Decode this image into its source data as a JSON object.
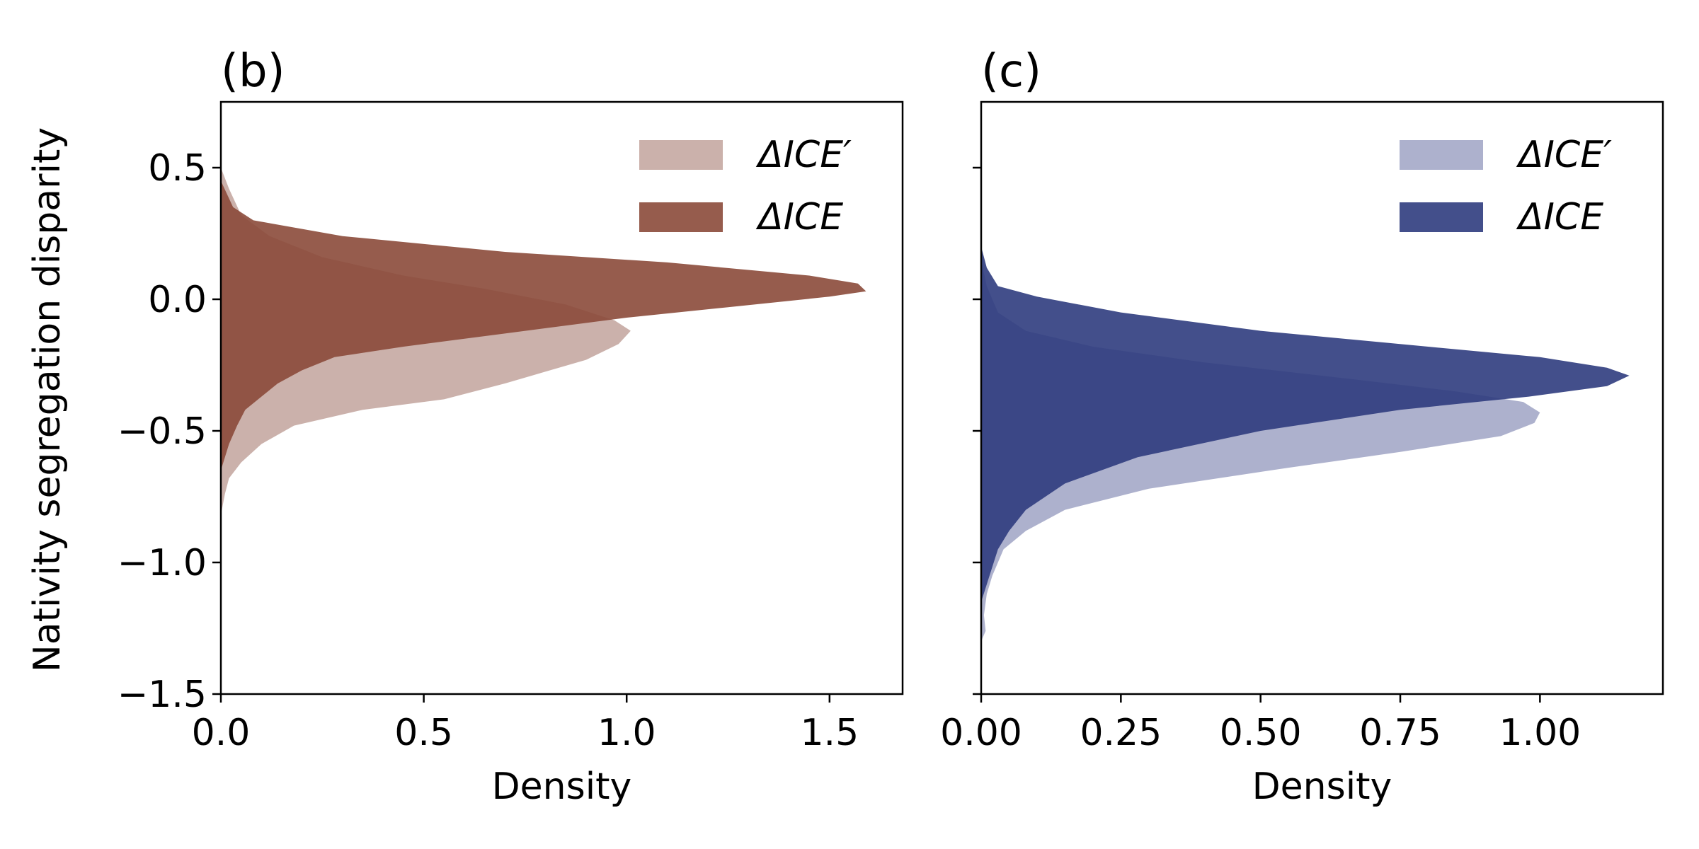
{
  "figure": {
    "ylabel": "Nativity segregation disparity"
  },
  "chart_data": [
    {
      "type": "area",
      "orientation": "horizontal-density",
      "title": "(b)",
      "xlabel": "Density",
      "ylabel": "Nativity segregation disparity",
      "xlim": [
        0,
        1.68
      ],
      "ylim": [
        -1.5,
        0.75
      ],
      "xticks": [
        0.0,
        0.5,
        1.0,
        1.5
      ],
      "xtick_labels": [
        "0.0",
        "0.5",
        "1.0",
        "1.5"
      ],
      "yticks": [
        0.5,
        0.0,
        -0.5,
        -1.0,
        -1.5
      ],
      "ytick_labels": [
        "0.5",
        "0.0",
        "−0.5",
        "−1.0",
        "−1.5"
      ],
      "show_yticklabels": true,
      "legend_position": "top-right",
      "series": [
        {
          "name": "ΔICE′",
          "color": "#c5a8a2",
          "points": [
            [
              0.0,
              0.5
            ],
            [
              0.02,
              0.42
            ],
            [
              0.05,
              0.32
            ],
            [
              0.12,
              0.24
            ],
            [
              0.25,
              0.16
            ],
            [
              0.45,
              0.09
            ],
            [
              0.65,
              0.04
            ],
            [
              0.85,
              -0.02
            ],
            [
              0.97,
              -0.08
            ],
            [
              1.01,
              -0.12
            ],
            [
              0.98,
              -0.17
            ],
            [
              0.9,
              -0.23
            ],
            [
              0.7,
              -0.32
            ],
            [
              0.55,
              -0.38
            ],
            [
              0.35,
              -0.42
            ],
            [
              0.18,
              -0.48
            ],
            [
              0.1,
              -0.55
            ],
            [
              0.05,
              -0.62
            ],
            [
              0.02,
              -0.68
            ],
            [
              0.01,
              -0.74
            ],
            [
              0.0,
              -0.82
            ]
          ]
        },
        {
          "name": "ΔICE",
          "color": "#8b4a3a",
          "points": [
            [
              0.0,
              0.45
            ],
            [
              0.03,
              0.35
            ],
            [
              0.08,
              0.3
            ],
            [
              0.3,
              0.24
            ],
            [
              0.7,
              0.18
            ],
            [
              1.1,
              0.14
            ],
            [
              1.45,
              0.09
            ],
            [
              1.57,
              0.06
            ],
            [
              1.59,
              0.03
            ],
            [
              1.5,
              0.01
            ],
            [
              1.25,
              -0.03
            ],
            [
              1.0,
              -0.07
            ],
            [
              0.7,
              -0.13
            ],
            [
              0.45,
              -0.18
            ],
            [
              0.28,
              -0.22
            ],
            [
              0.2,
              -0.27
            ],
            [
              0.14,
              -0.32
            ],
            [
              0.1,
              -0.37
            ],
            [
              0.06,
              -0.42
            ],
            [
              0.04,
              -0.48
            ],
            [
              0.02,
              -0.55
            ],
            [
              0.0,
              -0.65
            ]
          ]
        }
      ]
    },
    {
      "type": "area",
      "orientation": "horizontal-density",
      "title": "(c)",
      "xlabel": "Density",
      "ylabel": "",
      "xlim": [
        0,
        1.22
      ],
      "ylim": [
        -1.5,
        0.75
      ],
      "xticks": [
        0.0,
        0.25,
        0.5,
        0.75,
        1.0
      ],
      "xtick_labels": [
        "0.00",
        "0.25",
        "0.50",
        "0.75",
        "1.00"
      ],
      "yticks": [
        0.5,
        0.0,
        -0.5,
        -1.0,
        -1.5
      ],
      "ytick_labels": [
        "",
        "",
        "",
        "",
        ""
      ],
      "show_yticklabels": false,
      "legend_position": "top-right",
      "series": [
        {
          "name": "ΔICE′",
          "color": "#a4a9c8",
          "points": [
            [
              0.0,
              0.15
            ],
            [
              0.01,
              0.05
            ],
            [
              0.03,
              -0.05
            ],
            [
              0.08,
              -0.12
            ],
            [
              0.2,
              -0.18
            ],
            [
              0.4,
              -0.24
            ],
            [
              0.65,
              -0.3
            ],
            [
              0.85,
              -0.35
            ],
            [
              0.97,
              -0.39
            ],
            [
              1.0,
              -0.43
            ],
            [
              0.99,
              -0.47
            ],
            [
              0.93,
              -0.52
            ],
            [
              0.75,
              -0.58
            ],
            [
              0.55,
              -0.64
            ],
            [
              0.3,
              -0.72
            ],
            [
              0.15,
              -0.8
            ],
            [
              0.08,
              -0.88
            ],
            [
              0.04,
              -0.95
            ],
            [
              0.02,
              -1.05
            ],
            [
              0.01,
              -1.12
            ],
            [
              0.005,
              -1.2
            ],
            [
              0.008,
              -1.26
            ],
            [
              0.0,
              -1.3
            ]
          ]
        },
        {
          "name": "ΔICE",
          "color": "#2f3c7e",
          "points": [
            [
              0.0,
              0.2
            ],
            [
              0.01,
              0.12
            ],
            [
              0.03,
              0.05
            ],
            [
              0.1,
              0.01
            ],
            [
              0.25,
              -0.05
            ],
            [
              0.5,
              -0.12
            ],
            [
              0.8,
              -0.18
            ],
            [
              1.0,
              -0.22
            ],
            [
              1.12,
              -0.26
            ],
            [
              1.16,
              -0.29
            ],
            [
              1.12,
              -0.33
            ],
            [
              0.98,
              -0.37
            ],
            [
              0.75,
              -0.42
            ],
            [
              0.5,
              -0.5
            ],
            [
              0.28,
              -0.6
            ],
            [
              0.15,
              -0.7
            ],
            [
              0.08,
              -0.8
            ],
            [
              0.05,
              -0.88
            ],
            [
              0.03,
              -0.95
            ],
            [
              0.015,
              -1.05
            ],
            [
              0.0,
              -1.15
            ]
          ]
        }
      ]
    }
  ]
}
